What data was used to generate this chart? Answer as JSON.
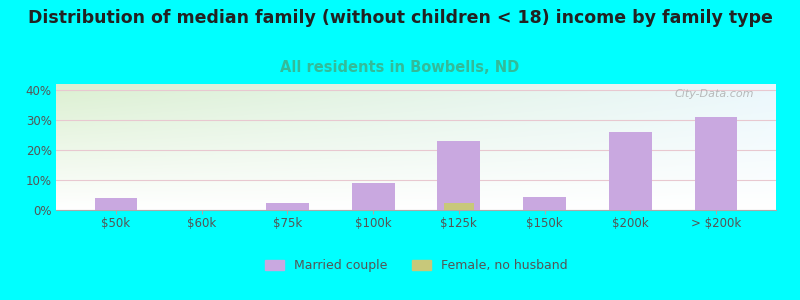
{
  "title": "Distribution of median family (without children < 18) income by family type",
  "subtitle": "All residents in Bowbells, ND",
  "background_color": "#00FFFF",
  "plot_bg_color_topleft": "#d8efd0",
  "plot_bg_color_topright": "#e8f5f8",
  "plot_bg_color_bottom": "#ffffff",
  "categories": [
    "$50k",
    "$60k",
    "$75k",
    "$100k",
    "$125k",
    "$150k",
    "$200k",
    "> $200k"
  ],
  "married_couple": [
    4.0,
    0,
    2.2,
    9.0,
    23.0,
    4.5,
    26.0,
    31.0
  ],
  "female_no_husband": [
    0,
    0,
    0,
    0,
    2.2,
    0,
    0,
    0
  ],
  "bar_color_married": "#c9a8e0",
  "bar_color_female": "#c8c87a",
  "bar_width": 0.5,
  "ylim": [
    0,
    42
  ],
  "yticks": [
    0,
    10,
    20,
    30,
    40
  ],
  "title_fontsize": 12.5,
  "subtitle_fontsize": 10.5,
  "subtitle_color": "#33bb99",
  "title_color": "#222222",
  "tick_color": "#555555",
  "grid_color": "#e8c8d0",
  "watermark": "City-Data.com",
  "legend_entries": [
    "Married couple",
    "Female, no husband"
  ]
}
